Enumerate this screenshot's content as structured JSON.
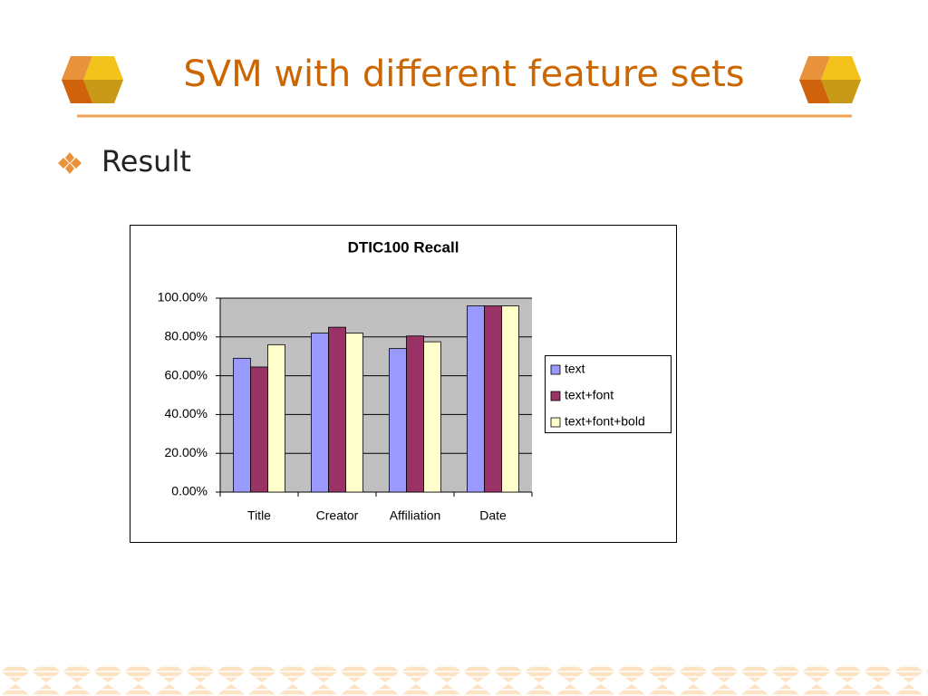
{
  "slide": {
    "title": "SVM with different feature sets",
    "bullet": "Result"
  },
  "chart_data": {
    "type": "bar",
    "title": "DTIC100 Recall",
    "categories": [
      "Title",
      "Creator",
      "Affiliation",
      "Date"
    ],
    "series": [
      {
        "name": "text",
        "color": "#9999ff",
        "values": [
          69,
          82,
          74,
          96
        ]
      },
      {
        "name": "text+font",
        "color": "#993366",
        "values": [
          64.5,
          85,
          80.5,
          96
        ]
      },
      {
        "name": "text+font+bold",
        "color": "#ffffcc",
        "values": [
          76,
          82,
          77.5,
          96
        ]
      }
    ],
    "ylim": [
      0,
      100
    ],
    "yticks": [
      {
        "value": 0,
        "label": "0.00%"
      },
      {
        "value": 20,
        "label": "20.00%"
      },
      {
        "value": 40,
        "label": "40.00%"
      },
      {
        "value": 60,
        "label": "60.00%"
      },
      {
        "value": 80,
        "label": "80.00%"
      },
      {
        "value": 100,
        "label": "100.00%"
      }
    ],
    "grid": true,
    "legend": "right"
  }
}
